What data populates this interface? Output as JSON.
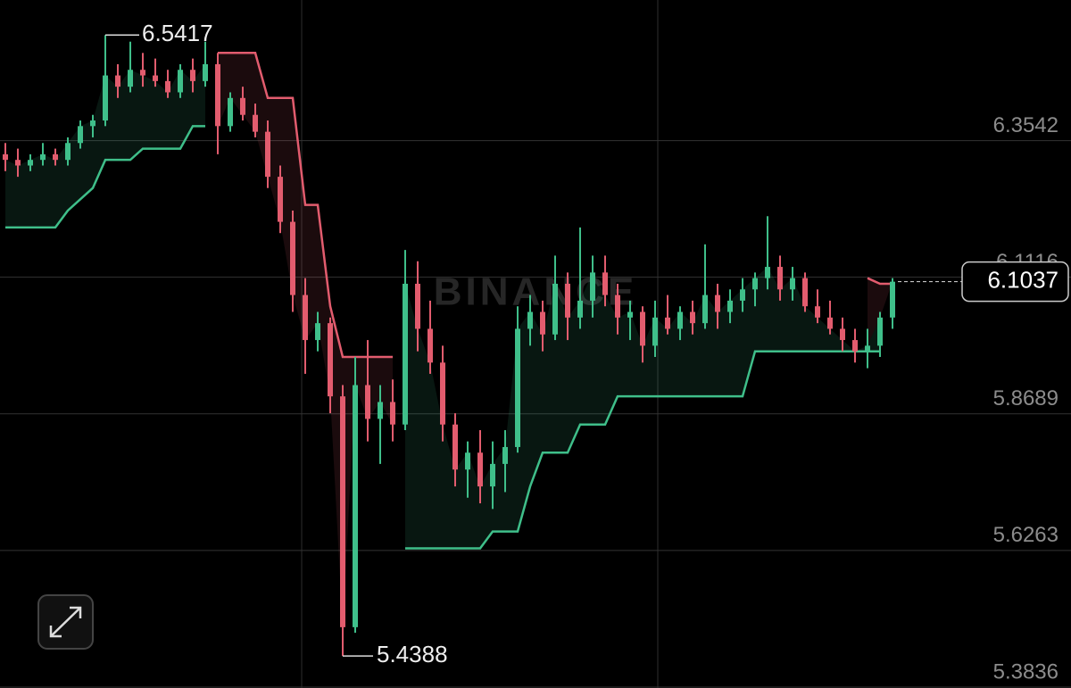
{
  "chart_data": {
    "type": "candlestick",
    "up_color": "#3fbf8a",
    "down_color": "#e25c6e",
    "grid": true,
    "ylim": [
      5.382,
      6.604
    ],
    "yticks": [
      5.3836,
      5.6263,
      5.8689,
      6.1116,
      6.3542
    ],
    "candles": [
      [
        6.33,
        6.35,
        6.3,
        6.32
      ],
      [
        6.32,
        6.34,
        6.29,
        6.31
      ],
      [
        6.31,
        6.33,
        6.3,
        6.32
      ],
      [
        6.32,
        6.35,
        6.31,
        6.33
      ],
      [
        6.33,
        6.34,
        6.31,
        6.32
      ],
      [
        6.32,
        6.36,
        6.31,
        6.35
      ],
      [
        6.35,
        6.39,
        6.34,
        6.38
      ],
      [
        6.38,
        6.4,
        6.36,
        6.39
      ],
      [
        6.39,
        6.5417,
        6.38,
        6.47
      ],
      [
        6.47,
        6.49,
        6.43,
        6.45
      ],
      [
        6.45,
        6.53,
        6.44,
        6.48
      ],
      [
        6.48,
        6.51,
        6.45,
        6.47
      ],
      [
        6.47,
        6.5,
        6.45,
        6.46
      ],
      [
        6.46,
        6.48,
        6.43,
        6.44
      ],
      [
        6.44,
        6.49,
        6.43,
        6.48
      ],
      [
        6.48,
        6.5,
        6.44,
        6.46
      ],
      [
        6.46,
        6.53,
        6.45,
        6.49
      ],
      [
        6.49,
        6.51,
        6.33,
        6.38
      ],
      [
        6.38,
        6.44,
        6.37,
        6.43
      ],
      [
        6.43,
        6.45,
        6.39,
        6.4
      ],
      [
        6.4,
        6.42,
        6.36,
        6.37
      ],
      [
        6.37,
        6.39,
        6.27,
        6.29
      ],
      [
        6.29,
        6.31,
        6.19,
        6.21
      ],
      [
        6.21,
        6.23,
        6.05,
        6.08
      ],
      [
        6.08,
        6.11,
        5.94,
        6.0
      ],
      [
        6.0,
        6.05,
        5.98,
        6.03
      ],
      [
        6.03,
        6.04,
        5.87,
        5.9
      ],
      [
        5.9,
        5.92,
        5.4388,
        5.49
      ],
      [
        5.49,
        5.97,
        5.48,
        5.92
      ],
      [
        5.92,
        6.0,
        5.82,
        5.86
      ],
      [
        5.86,
        5.92,
        5.78,
        5.89
      ],
      [
        5.89,
        5.93,
        5.82,
        5.85
      ],
      [
        5.85,
        6.16,
        5.84,
        6.1
      ],
      [
        6.1,
        6.14,
        5.98,
        6.02
      ],
      [
        6.02,
        6.07,
        5.94,
        5.96
      ],
      [
        5.96,
        5.99,
        5.82,
        5.85
      ],
      [
        5.85,
        5.87,
        5.74,
        5.77
      ],
      [
        5.77,
        5.82,
        5.72,
        5.8
      ],
      [
        5.8,
        5.84,
        5.71,
        5.74
      ],
      [
        5.74,
        5.82,
        5.7,
        5.78
      ],
      [
        5.78,
        5.84,
        5.73,
        5.81
      ],
      [
        5.81,
        6.06,
        5.8,
        6.02
      ],
      [
        6.02,
        6.08,
        5.99,
        6.05
      ],
      [
        6.05,
        6.07,
        5.98,
        6.01
      ],
      [
        6.01,
        6.15,
        6.0,
        6.1
      ],
      [
        6.1,
        6.12,
        6.0,
        6.04
      ],
      [
        6.04,
        6.2,
        6.02,
        6.07
      ],
      [
        6.07,
        6.15,
        6.04,
        6.12
      ],
      [
        6.12,
        6.15,
        6.06,
        6.08
      ],
      [
        6.08,
        6.1,
        6.01,
        6.04
      ],
      [
        6.04,
        6.07,
        6.0,
        6.05
      ],
      [
        6.05,
        6.06,
        5.96,
        5.99
      ],
      [
        5.99,
        6.07,
        5.97,
        6.04
      ],
      [
        6.04,
        6.08,
        6.01,
        6.02
      ],
      [
        6.02,
        6.06,
        6.0,
        6.05
      ],
      [
        6.05,
        6.07,
        6.01,
        6.03
      ],
      [
        6.03,
        6.17,
        6.02,
        6.08
      ],
      [
        6.08,
        6.1,
        6.02,
        6.05
      ],
      [
        6.05,
        6.09,
        6.03,
        6.07
      ],
      [
        6.07,
        6.11,
        6.05,
        6.09
      ],
      [
        6.09,
        6.12,
        6.06,
        6.11
      ],
      [
        6.11,
        6.22,
        6.09,
        6.13
      ],
      [
        6.13,
        6.15,
        6.07,
        6.09
      ],
      [
        6.09,
        6.13,
        6.07,
        6.11
      ],
      [
        6.11,
        6.12,
        6.05,
        6.06
      ],
      [
        6.06,
        6.09,
        6.03,
        6.04
      ],
      [
        6.04,
        6.07,
        6.01,
        6.02
      ],
      [
        6.02,
        6.04,
        5.98,
        6.0
      ],
      [
        6.0,
        6.02,
        5.96,
        5.98
      ],
      [
        5.98,
        6.02,
        5.95,
        5.99
      ],
      [
        5.99,
        6.05,
        5.97,
        6.04
      ],
      [
        6.04,
        6.11,
        6.02,
        6.1037
      ]
    ],
    "lines": [
      {
        "color": "#3fbf8a",
        "values": [
          6.2,
          6.2,
          6.2,
          6.2,
          6.2,
          6.23,
          6.25,
          6.27,
          6.32,
          6.32,
          6.32,
          6.34,
          6.34,
          6.34,
          6.34,
          6.38,
          6.38,
          null,
          null,
          null,
          null,
          null,
          null,
          null,
          null,
          null,
          null,
          null,
          null,
          null,
          null,
          null,
          5.63,
          5.63,
          5.63,
          5.63,
          5.63,
          5.63,
          5.63,
          5.66,
          5.66,
          5.66,
          5.74,
          5.8,
          5.8,
          5.8,
          5.85,
          5.85,
          5.85,
          5.9,
          5.9,
          5.9,
          5.9,
          5.9,
          5.9,
          5.9,
          5.9,
          5.9,
          5.9,
          5.9,
          5.98,
          5.98,
          5.98,
          5.98,
          5.98,
          5.98,
          5.98,
          5.98,
          5.98,
          5.98,
          5.98,
          null
        ]
      },
      {
        "color": "#e25c6e",
        "values": [
          null,
          null,
          null,
          null,
          null,
          null,
          null,
          null,
          null,
          null,
          null,
          null,
          null,
          null,
          null,
          null,
          null,
          6.51,
          6.51,
          6.51,
          6.51,
          6.43,
          6.43,
          6.43,
          6.24,
          6.24,
          6.06,
          5.97,
          5.97,
          5.97,
          5.97,
          5.97,
          null,
          null,
          null,
          null,
          null,
          null,
          null,
          null,
          null,
          null,
          null,
          null,
          null,
          null,
          null,
          null,
          null,
          null,
          null,
          null,
          null,
          null,
          null,
          null,
          null,
          null,
          null,
          null,
          null,
          null,
          null,
          null,
          null,
          null,
          null,
          null,
          null,
          6.11,
          6.1,
          6.1
        ]
      }
    ],
    "high_label": 6.5417,
    "low_label": 5.4388,
    "last_price": 6.1037,
    "watermark": "BINANCE"
  }
}
